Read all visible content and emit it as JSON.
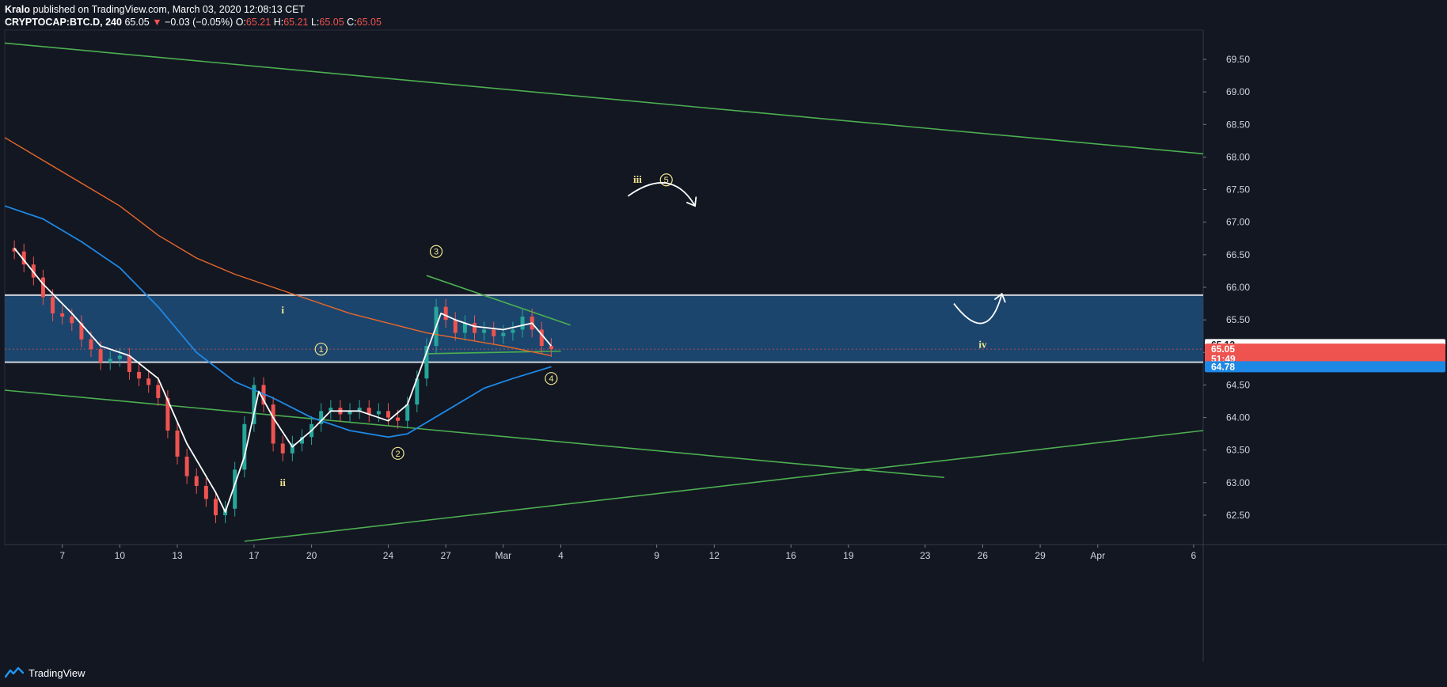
{
  "header": {
    "author": "Kralo",
    "published_text": "published on TradingView.com, March 03, 2020 12:08:13 CET",
    "symbol": "CRYPTOCAP:BTC.D, 240",
    "last": "65.05",
    "change_arrow": "▼",
    "change": "−0.03 (−0.05%)",
    "o_label": "O:",
    "o_value": "65.21",
    "h_label": "H:",
    "h_value": "65.21",
    "l_label": "L:",
    "l_value": "65.05",
    "c_label": "C:",
    "c_value": "65.05"
  },
  "footer": {
    "brand": "TradingView",
    "logo_icon": "tradingview-logo-icon"
  },
  "colors": {
    "background": "#131722",
    "up": "#26a69a",
    "down": "#ef5350",
    "trendline": "#4caf50",
    "zone_fill": "#1e4a75",
    "zone_border": "#d1d4dc",
    "ma_fast": "#ffffff",
    "ma_mid": "#1e88e5",
    "ma_slow": "#e8672a",
    "wave_label": "#f0e68c"
  },
  "chart_data": {
    "type": "candlestick",
    "symbol": "CRYPTOCAP:BTC.D",
    "interval": "240",
    "x_ticks": [
      {
        "label": "7",
        "date": "2020-02-07"
      },
      {
        "label": "10",
        "date": "2020-02-10"
      },
      {
        "label": "13",
        "date": "2020-02-13"
      },
      {
        "label": "17",
        "date": "2020-02-17"
      },
      {
        "label": "20",
        "date": "2020-02-20"
      },
      {
        "label": "24",
        "date": "2020-02-24"
      },
      {
        "label": "27",
        "date": "2020-02-27"
      },
      {
        "label": "Mar",
        "date": "2020-03-01"
      },
      {
        "label": "4",
        "date": "2020-03-04"
      },
      {
        "label": "9",
        "date": "2020-03-09"
      },
      {
        "label": "12",
        "date": "2020-03-12"
      },
      {
        "label": "16",
        "date": "2020-03-16"
      },
      {
        "label": "19",
        "date": "2020-03-19"
      },
      {
        "label": "23",
        "date": "2020-03-23"
      },
      {
        "label": "26",
        "date": "2020-03-26"
      },
      {
        "label": "29",
        "date": "2020-03-29"
      },
      {
        "label": "Apr",
        "date": "2020-04-01"
      },
      {
        "label": "6",
        "date": "2020-04-06"
      }
    ],
    "y_ticks": [
      "62.50",
      "63.00",
      "63.50",
      "64.00",
      "64.50",
      "65.00",
      "65.50",
      "66.00",
      "66.50",
      "67.00",
      "67.50",
      "68.00",
      "68.50",
      "69.00",
      "69.50"
    ],
    "ylim": [
      62.05,
      69.95
    ],
    "xlim": [
      "2020-02-04",
      "2020-04-06T12:00"
    ],
    "price_labels": [
      {
        "text": "65.12",
        "value": 65.12,
        "color": "#ffffff"
      },
      {
        "text": "65.05",
        "value": 65.05,
        "color": "#ef5350"
      },
      {
        "text": "51:49",
        "value": 64.9,
        "color": "#ef5350"
      },
      {
        "text": "64.78",
        "value": 64.78,
        "color": "#1e88e5"
      }
    ],
    "close_series": [
      [
        "2020-02-04T12:00",
        66.55
      ],
      [
        "2020-02-05T00:00",
        66.35
      ],
      [
        "2020-02-05T12:00",
        66.15
      ],
      [
        "2020-02-06T00:00",
        65.85
      ],
      [
        "2020-02-06T12:00",
        65.6
      ],
      [
        "2020-02-07T00:00",
        65.55
      ],
      [
        "2020-02-07T12:00",
        65.45
      ],
      [
        "2020-02-08T00:00",
        65.2
      ],
      [
        "2020-02-08T12:00",
        65.05
      ],
      [
        "2020-02-09T00:00",
        64.85
      ],
      [
        "2020-02-09T12:00",
        64.9
      ],
      [
        "2020-02-10T00:00",
        64.95
      ],
      [
        "2020-02-10T12:00",
        64.7
      ],
      [
        "2020-02-11T00:00",
        64.6
      ],
      [
        "2020-02-11T12:00",
        64.5
      ],
      [
        "2020-02-12T00:00",
        64.3
      ],
      [
        "2020-02-12T12:00",
        63.8
      ],
      [
        "2020-02-13T00:00",
        63.4
      ],
      [
        "2020-02-13T12:00",
        63.1
      ],
      [
        "2020-02-14T00:00",
        62.95
      ],
      [
        "2020-02-14T12:00",
        62.75
      ],
      [
        "2020-02-15T00:00",
        62.5
      ],
      [
        "2020-02-15T12:00",
        62.6
      ],
      [
        "2020-02-16T00:00",
        63.2
      ],
      [
        "2020-02-16T12:00",
        63.9
      ],
      [
        "2020-02-17T00:00",
        64.5
      ],
      [
        "2020-02-17T12:00",
        64.2
      ],
      [
        "2020-02-18T00:00",
        63.6
      ],
      [
        "2020-02-18T12:00",
        63.45
      ],
      [
        "2020-02-19T00:00",
        63.6
      ],
      [
        "2020-02-19T12:00",
        63.7
      ],
      [
        "2020-02-20T00:00",
        63.9
      ],
      [
        "2020-02-20T12:00",
        64.1
      ],
      [
        "2020-02-21T00:00",
        64.15
      ],
      [
        "2020-02-21T12:00",
        64.05
      ],
      [
        "2020-02-22T00:00",
        64.1
      ],
      [
        "2020-02-22T12:00",
        64.15
      ],
      [
        "2020-02-23T00:00",
        64.05
      ],
      [
        "2020-02-23T12:00",
        64.1
      ],
      [
        "2020-02-24T00:00",
        64.0
      ],
      [
        "2020-02-24T12:00",
        63.95
      ],
      [
        "2020-02-25T00:00",
        64.2
      ],
      [
        "2020-02-25T12:00",
        64.6
      ],
      [
        "2020-02-26T00:00",
        65.1
      ],
      [
        "2020-02-26T12:00",
        65.7
      ],
      [
        "2020-02-27T00:00",
        65.5
      ],
      [
        "2020-02-27T12:00",
        65.3
      ],
      [
        "2020-02-28T00:00",
        65.45
      ],
      [
        "2020-02-28T12:00",
        65.3
      ],
      [
        "2020-02-29T00:00",
        65.35
      ],
      [
        "2020-02-29T12:00",
        65.25
      ],
      [
        "2020-03-01T00:00",
        65.3
      ],
      [
        "2020-03-01T12:00",
        65.35
      ],
      [
        "2020-03-02T00:00",
        65.55
      ],
      [
        "2020-03-02T12:00",
        65.35
      ],
      [
        "2020-03-03T00:00",
        65.1
      ],
      [
        "2020-03-03T12:00",
        65.05
      ]
    ],
    "ma_fast": [
      [
        "2020-02-04T12:00",
        66.6
      ],
      [
        "2020-02-06T00:00",
        66.05
      ],
      [
        "2020-02-07T12:00",
        65.6
      ],
      [
        "2020-02-09T00:00",
        65.1
      ],
      [
        "2020-02-10T12:00",
        64.95
      ],
      [
        "2020-02-12T00:00",
        64.6
      ],
      [
        "2020-02-13T12:00",
        63.6
      ],
      [
        "2020-02-15T00:00",
        62.85
      ],
      [
        "2020-02-15T12:00",
        62.55
      ],
      [
        "2020-02-16T12:00",
        63.4
      ],
      [
        "2020-02-17T06:00",
        64.4
      ],
      [
        "2020-02-18T00:00",
        64.0
      ],
      [
        "2020-02-19T00:00",
        63.55
      ],
      [
        "2020-02-20T00:00",
        63.8
      ],
      [
        "2020-02-21T00:00",
        64.1
      ],
      [
        "2020-02-22T12:00",
        64.1
      ],
      [
        "2020-02-24T00:00",
        63.95
      ],
      [
        "2020-02-25T00:00",
        64.2
      ],
      [
        "2020-02-26T00:00",
        65.0
      ],
      [
        "2020-02-26T18:00",
        65.6
      ],
      [
        "2020-02-27T12:00",
        65.5
      ],
      [
        "2020-02-28T12:00",
        65.4
      ],
      [
        "2020-03-01T00:00",
        65.35
      ],
      [
        "2020-03-02T12:00",
        65.45
      ],
      [
        "2020-03-03T12:00",
        65.1
      ]
    ],
    "ma_mid": [
      [
        "2020-02-04T00:00",
        67.25
      ],
      [
        "2020-02-06T00:00",
        67.05
      ],
      [
        "2020-02-08T00:00",
        66.7
      ],
      [
        "2020-02-10T00:00",
        66.3
      ],
      [
        "2020-02-12T00:00",
        65.7
      ],
      [
        "2020-02-14T00:00",
        65.0
      ],
      [
        "2020-02-16T00:00",
        64.55
      ],
      [
        "2020-02-18T00:00",
        64.3
      ],
      [
        "2020-02-20T00:00",
        64.0
      ],
      [
        "2020-02-22T00:00",
        63.8
      ],
      [
        "2020-02-24T00:00",
        63.7
      ],
      [
        "2020-02-25T00:00",
        63.75
      ],
      [
        "2020-02-27T00:00",
        64.1
      ],
      [
        "2020-02-29T00:00",
        64.45
      ],
      [
        "2020-03-01T12:00",
        64.6
      ],
      [
        "2020-03-03T12:00",
        64.78
      ]
    ],
    "ma_slow": [
      [
        "2020-02-04T00:00",
        68.3
      ],
      [
        "2020-02-06T00:00",
        67.95
      ],
      [
        "2020-02-08T00:00",
        67.6
      ],
      [
        "2020-02-10T00:00",
        67.25
      ],
      [
        "2020-02-12T00:00",
        66.8
      ],
      [
        "2020-02-14T00:00",
        66.45
      ],
      [
        "2020-02-16T00:00",
        66.2
      ],
      [
        "2020-02-18T00:00",
        66.0
      ],
      [
        "2020-02-20T00:00",
        65.8
      ],
      [
        "2020-02-22T00:00",
        65.6
      ],
      [
        "2020-02-24T00:00",
        65.45
      ],
      [
        "2020-02-26T00:00",
        65.3
      ],
      [
        "2020-02-28T00:00",
        65.2
      ],
      [
        "2020-03-01T00:00",
        65.1
      ],
      [
        "2020-03-03T12:00",
        64.95
      ]
    ],
    "zone": {
      "low": 64.85,
      "high": 65.88,
      "current_price": 65.05
    },
    "trendlines": [
      {
        "start": [
          "2020-02-04T00:00",
          69.75
        ],
        "end": [
          "2020-04-06T12:00",
          68.05
        ]
      },
      {
        "start": [
          "2020-02-04T00:00",
          64.42
        ],
        "end": [
          "2020-03-24T00:00",
          63.08
        ]
      },
      {
        "start": [
          "2020-02-16T12:00",
          62.1
        ],
        "end": [
          "2020-04-06T12:00",
          63.8
        ]
      },
      {
        "start": [
          "2020-02-26T00:00",
          66.18
        ],
        "end": [
          "2020-03-04T12:00",
          65.42
        ]
      },
      {
        "start": [
          "2020-02-26T00:00",
          64.98
        ],
        "end": [
          "2020-03-04T00:00",
          65.02
        ]
      }
    ],
    "wave_labels": [
      {
        "text": "i",
        "circled": false,
        "at": [
          "2020-02-18T12:00",
          65.65
        ]
      },
      {
        "text": "1",
        "circled": true,
        "at": [
          "2020-02-20T12:00",
          65.05
        ]
      },
      {
        "text": "ii",
        "circled": false,
        "at": [
          "2020-02-18T12:00",
          63.0
        ]
      },
      {
        "text": "2",
        "circled": true,
        "at": [
          "2020-02-24T12:00",
          63.45
        ]
      },
      {
        "text": "3",
        "circled": true,
        "at": [
          "2020-02-26T12:00",
          66.55
        ]
      },
      {
        "text": "4",
        "circled": true,
        "at": [
          "2020-03-03T12:00",
          64.6
        ]
      },
      {
        "text": "iii",
        "circled": false,
        "at": [
          "2020-03-08T00:00",
          67.65
        ]
      },
      {
        "text": "5",
        "circled": true,
        "at": [
          "2020-03-09T12:00",
          67.65
        ]
      },
      {
        "text": "iv",
        "circled": false,
        "at": [
          "2020-03-26T00:00",
          65.12
        ]
      }
    ],
    "arrows": [
      {
        "path": [
          [
            "2020-03-07T12:00",
            67.4
          ],
          [
            "2020-03-09T12:00",
            67.6
          ],
          [
            "2020-03-11T00:00",
            67.25
          ]
        ]
      },
      {
        "path": [
          [
            "2020-03-24T12:00",
            65.75
          ],
          [
            "2020-03-26T00:00",
            65.45
          ],
          [
            "2020-03-27T00:00",
            65.9
          ]
        ]
      }
    ]
  }
}
